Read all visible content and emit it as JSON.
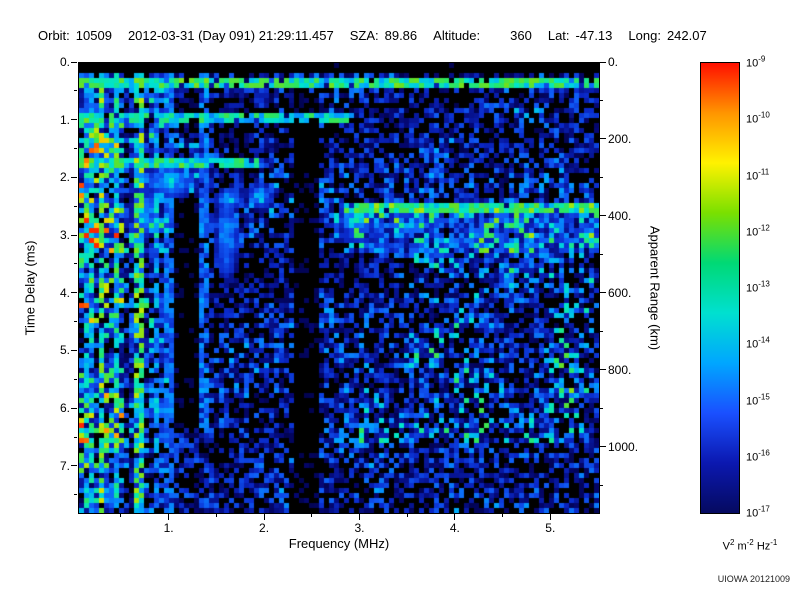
{
  "header": {
    "items": [
      {
        "label": "Orbit:",
        "value": "10509"
      },
      {
        "label": "",
        "value": "2012-03-31 (Day 091) 21:29:11.457"
      },
      {
        "label": "SZA:",
        "value": "89.86"
      },
      {
        "label": "Altitude:",
        "value": "360",
        "wide_gap": true
      },
      {
        "label": "Lat:",
        "value": "-47.13"
      },
      {
        "label": "Long:",
        "value": "242.07"
      }
    ]
  },
  "credit": "UIOWA 20121009",
  "chart_data": {
    "type": "heatmap",
    "subtype": "radar-sounder-ionogram-spectrogram",
    "title": "",
    "xlabel": "Frequency (MHz)",
    "ylabel_left": "Time Delay (ms)",
    "ylabel_right": "Apparent Range (km)",
    "x_range_mhz": [
      0.05,
      5.5
    ],
    "y_range_ms": [
      0,
      7.8
    ],
    "x_tick_values": [
      1,
      2,
      3,
      4,
      5
    ],
    "x_tick_labels": [
      "1.",
      "2.",
      "3.",
      "4.",
      "5."
    ],
    "y_tick_values": [
      0,
      1,
      2,
      3,
      4,
      5,
      6,
      7
    ],
    "y_tick_labels": [
      "0.",
      "1.",
      "2.",
      "3.",
      "4.",
      "5.",
      "6.",
      "7."
    ],
    "right_tick_values_km": [
      0,
      200,
      400,
      600,
      800,
      1000
    ],
    "right_tick_labels": [
      "0.",
      "200.",
      "400.",
      "600.",
      "800.",
      "1000."
    ],
    "km_per_ms": 150,
    "grid": false,
    "background_color": "#000000",
    "colorbar": {
      "scale": "log",
      "exponent_base": "10",
      "tick_exponents": [
        "-9",
        "-10",
        "-11",
        "-12",
        "-13",
        "-14",
        "-15",
        "-16",
        "-17"
      ],
      "unit_parts": [
        [
          "V",
          "2"
        ],
        [
          "m",
          "-2"
        ],
        [
          "Hz",
          "-1"
        ]
      ],
      "gradient_top_to_bottom": [
        "#ff1000",
        "#ff9500",
        "#fff200",
        "#7ae000",
        "#00d975",
        "#00e0d0",
        "#00a6ff",
        "#1a50ff",
        "#0b18b0",
        "#050a60"
      ]
    },
    "features": {
      "noise_seed": 20121009,
      "noise_regions": [
        {
          "f0": 0.05,
          "f1": 0.5,
          "t0": 0.15,
          "t1": 7.8,
          "amp": 0.78,
          "pow": 1.6
        },
        {
          "f0": 0.5,
          "f1": 1.0,
          "t0": 0.15,
          "t1": 7.8,
          "amp": 0.5,
          "pow": 2.0
        },
        {
          "f0": 1.0,
          "f1": 2.9,
          "t0": 0.15,
          "t1": 7.8,
          "amp": 0.38,
          "pow": 2.3
        },
        {
          "f0": 2.9,
          "f1": 5.5,
          "t0": 0.15,
          "t1": 7.8,
          "amp": 0.36,
          "pow": 2.3
        },
        {
          "f0": 3.0,
          "f1": 5.45,
          "t0": 2.5,
          "t1": 6.6,
          "amp": 0.52,
          "pow": 2.1
        }
      ],
      "dark_zones": [
        {
          "f0": 1.02,
          "f1": 1.32,
          "t0": 2.3,
          "t1": 6.3
        },
        {
          "f0": 2.28,
          "f1": 2.56,
          "t0": 0.5,
          "t1": 7.8
        }
      ],
      "horizontal_bands": [
        {
          "t": 0.32,
          "half_width": 0.1,
          "f_start": 0.05,
          "f_end": 5.5,
          "strength": 0.62
        },
        {
          "t": 0.97,
          "half_width": 0.1,
          "f_start": 0.05,
          "f_end": 2.95,
          "strength": 0.55
        },
        {
          "t": 1.75,
          "half_width": 0.11,
          "f_start": 0.05,
          "f_end": 1.95,
          "strength": 0.6
        },
        {
          "t": 2.52,
          "half_width": 0.09,
          "f_start": 2.85,
          "f_end": 5.5,
          "strength": 0.66
        }
      ],
      "vertical_lines": [
        {
          "f": 0.15,
          "width": 0.04,
          "t_end": 7.8,
          "strength": 0.52
        },
        {
          "f": 0.28,
          "width": 0.045,
          "t_end": 7.8,
          "strength": 0.75
        },
        {
          "f": 0.44,
          "width": 0.04,
          "t_end": 7.8,
          "strength": 0.55
        },
        {
          "f": 0.67,
          "width": 0.045,
          "t_end": 7.8,
          "strength": 0.72
        },
        {
          "f": 0.86,
          "width": 0.04,
          "t_end": 7.8,
          "strength": 0.45
        },
        {
          "f": 1.0,
          "width": 0.04,
          "t_end": 7.8,
          "strength": 0.38
        },
        {
          "f": 1.38,
          "width": 0.05,
          "t_end": 6.3,
          "strength": 0.4
        }
      ],
      "blobs": [
        {
          "f": 2.95,
          "t": 2.72,
          "rf": 0.12,
          "rt": 0.18,
          "strength": 0.55
        },
        {
          "f": 1.0,
          "t": 2.05,
          "rf": 0.2,
          "rt": 0.18,
          "strength": 0.5
        },
        {
          "f": 1.6,
          "t": 3.0,
          "rf": 0.08,
          "rt": 0.5,
          "strength": 0.45
        },
        {
          "f": 1.62,
          "t": 2.35,
          "rf": 0.1,
          "rt": 0.12,
          "strength": 0.5
        },
        {
          "f": 1.95,
          "t": 2.3,
          "rf": 0.1,
          "rt": 0.15,
          "strength": 0.45
        },
        {
          "f": 0.75,
          "t": 2.6,
          "rf": 0.1,
          "rt": 0.3,
          "strength": 0.42
        }
      ],
      "diffuse_regions": [
        {
          "f0": 2.85,
          "f1": 5.5,
          "t0": 2.55,
          "t1": 3.25,
          "amp": 0.3
        }
      ]
    }
  }
}
